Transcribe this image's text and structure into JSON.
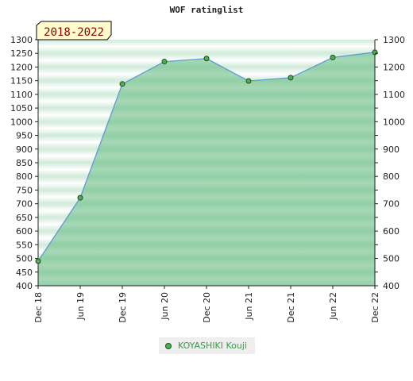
{
  "chart_data": {
    "type": "area",
    "title": "WOF ratinglist",
    "period_label": "2018-2022",
    "x": [
      "Dec 18",
      "Jun 19",
      "Dec 19",
      "Jun 20",
      "Dec 20",
      "Jun 21",
      "Dec 21",
      "Jun 22",
      "Dec 22"
    ],
    "series": [
      {
        "name": "KOYASHIKI Kouji",
        "values": [
          490,
          722,
          1138,
          1220,
          1231,
          1149,
          1161,
          1235,
          1254
        ]
      }
    ],
    "ylim": [
      400,
      1300
    ],
    "yticks_left": [
      400,
      450,
      500,
      550,
      600,
      650,
      700,
      750,
      800,
      850,
      900,
      950,
      1000,
      1050,
      1100,
      1150,
      1200,
      1250,
      1300
    ],
    "yticks_right": [
      400,
      500,
      600,
      700,
      800,
      900,
      1000,
      1100,
      1200,
      1300
    ],
    "grid": true,
    "legend_position": "bottom",
    "colors": {
      "line": "#5b9bd5",
      "fill": "#7cc494",
      "marker": "#4caf50",
      "band_light": "#e8f5ec",
      "band_dark": "#9fd6b1"
    }
  }
}
